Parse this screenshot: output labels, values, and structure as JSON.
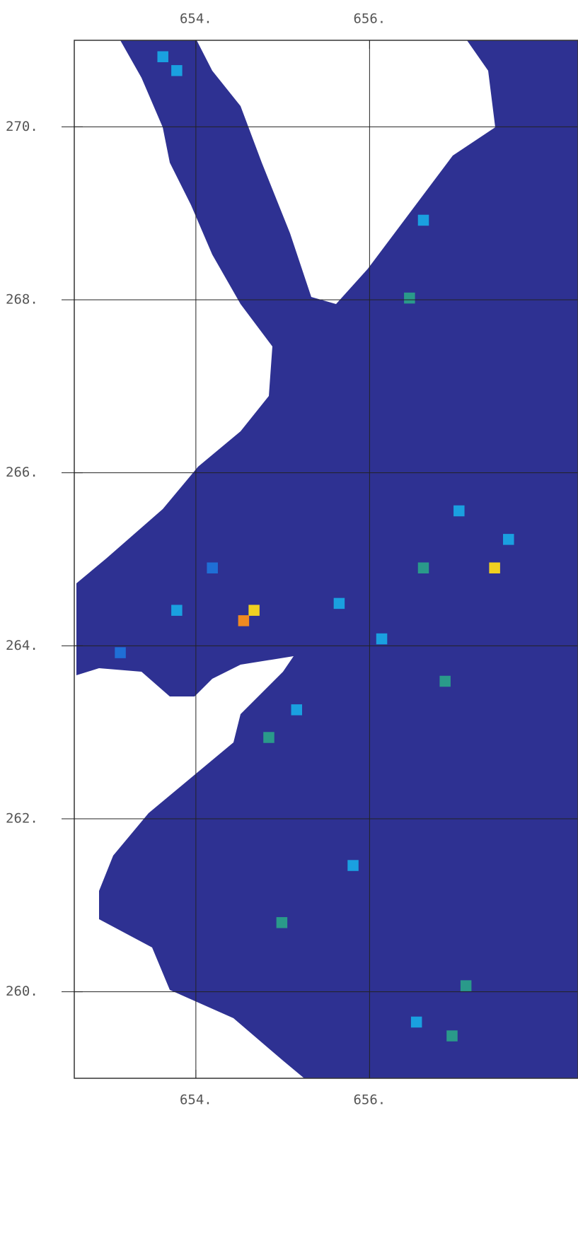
{
  "chart_data": {
    "type": "heatmap",
    "xlim": [
      652.6,
      658.4
    ],
    "ylim": [
      259,
      271
    ],
    "xticks": [
      {
        "value": 654,
        "label": "654."
      },
      {
        "value": 656,
        "label": "656."
      }
    ],
    "yticks": [
      {
        "value": 260,
        "label": "260."
      },
      {
        "value": 262,
        "label": "262."
      },
      {
        "value": 264,
        "label": "264."
      },
      {
        "value": 266,
        "label": "266."
      },
      {
        "value": 268,
        "label": "268."
      },
      {
        "value": 270,
        "label": "270."
      }
    ],
    "grid": true,
    "colors": [
      "#2a2f8f",
      "#1f6fd6",
      "#1aa0e0",
      "#2a9a8a",
      "#f0d020",
      "#f08a20"
    ],
    "x": [
      653.62,
      653.78,
      656.62,
      656.46,
      654.67,
      654.55,
      654.84,
      656.62,
      657.44,
      655.65,
      656.14,
      656.87,
      655.16,
      655.81,
      654.99,
      657.11,
      656.54,
      656.95,
      653.78,
      653.13,
      657.03,
      657.6,
      654.19
    ],
    "y": [
      270.81,
      270.65,
      268.92,
      268.02,
      264.41,
      264.29,
      262.94,
      264.9,
      264.9,
      264.49,
      264.08,
      263.59,
      263.26,
      261.46,
      260.8,
      260.07,
      259.65,
      259.49,
      264.41,
      263.92,
      265.56,
      265.23,
      264.9
    ],
    "values": [
      2,
      2,
      2,
      3,
      4,
      5,
      3,
      3,
      4,
      2,
      2,
      3,
      2,
      2,
      3,
      3,
      2,
      3,
      2,
      1,
      2,
      2,
      1
    ]
  }
}
